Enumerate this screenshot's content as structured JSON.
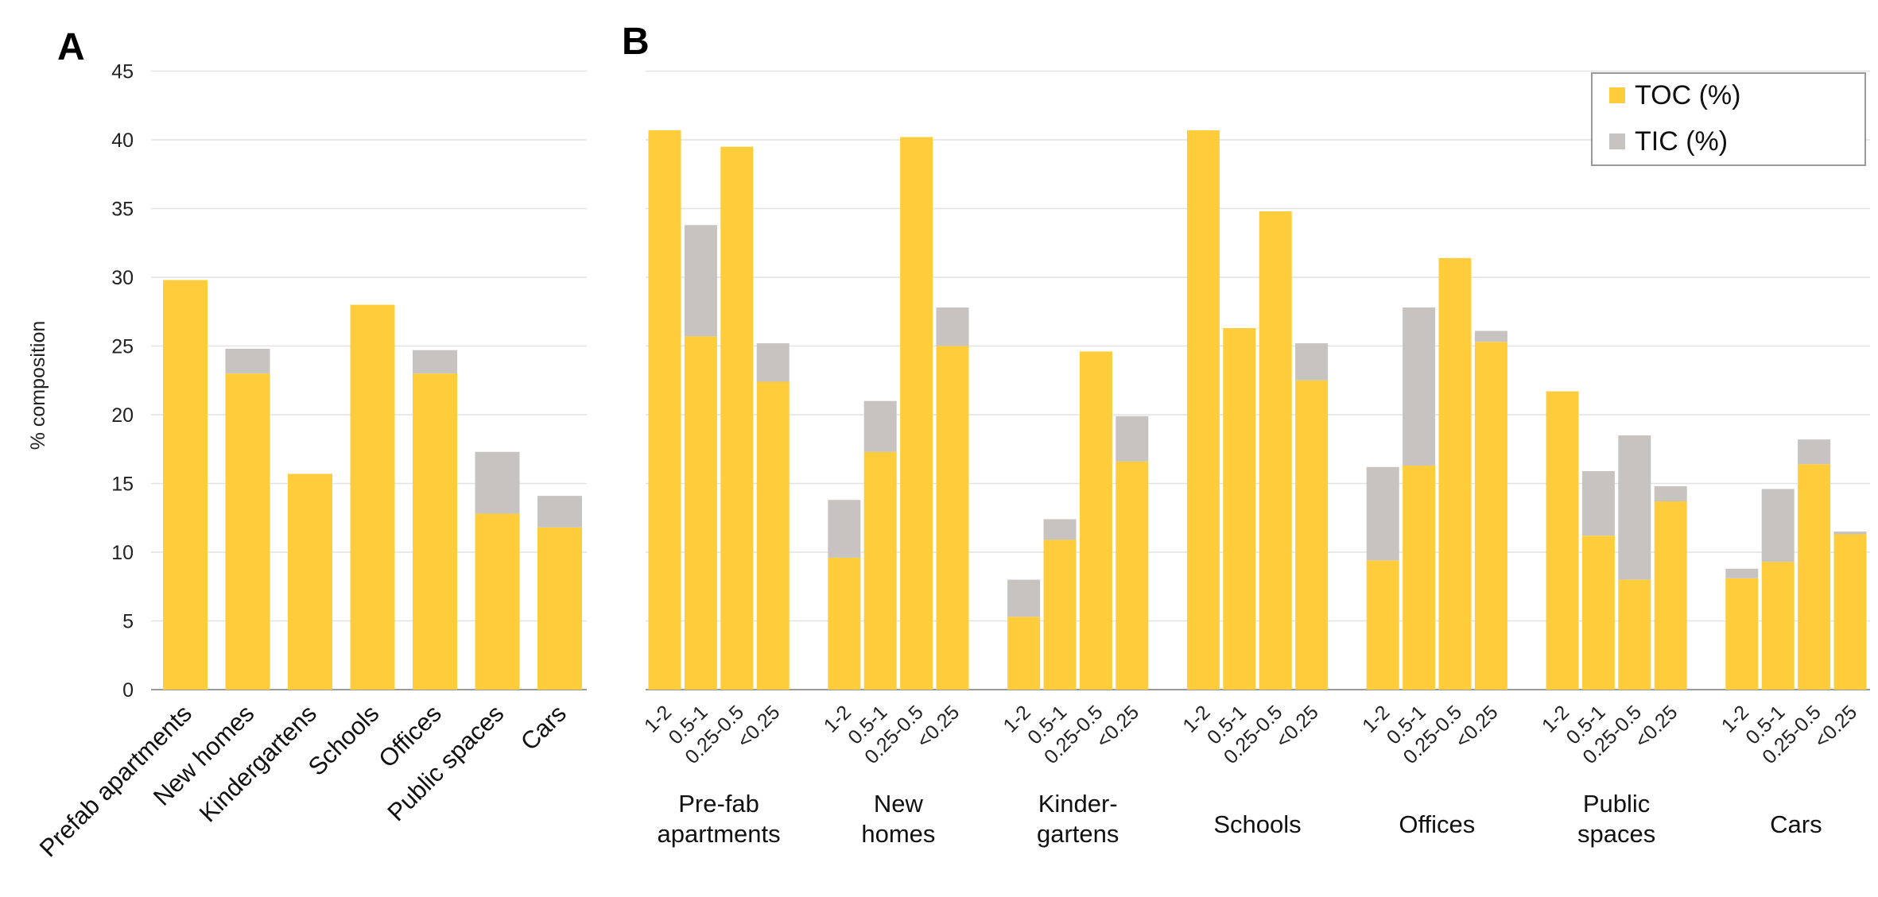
{
  "panels": {
    "a": "A",
    "b": "B"
  },
  "chart_data": [
    {
      "type": "bar",
      "stacked": true,
      "panel_label": "A",
      "title": "",
      "xlabel": "",
      "ylabel": "% composition",
      "ylim": [
        0,
        45
      ],
      "yticks": [
        0,
        5,
        10,
        15,
        20,
        25,
        30,
        35,
        40,
        45
      ],
      "grid": true,
      "categories": [
        "Prefab apartments",
        "New homes",
        "Kindergartens",
        "Schools",
        "Offices",
        "Public spaces",
        "Cars"
      ],
      "series": [
        {
          "name": "TOC (%)",
          "color": "#ffcd3c",
          "values": [
            29.8,
            23.0,
            15.7,
            28.0,
            23.0,
            12.8,
            11.8
          ]
        },
        {
          "name": "TIC (%)",
          "color": "#c7c3c0",
          "values": [
            0.0,
            1.8,
            0.0,
            0.0,
            1.7,
            4.5,
            2.3
          ]
        }
      ]
    },
    {
      "type": "bar",
      "stacked": true,
      "panel_label": "B",
      "title": "",
      "xlabel": "",
      "ylabel": "",
      "ylim": [
        0,
        45
      ],
      "grid": true,
      "legend": "top-right",
      "groups": [
        {
          "label_lines": [
            "Pre-fab",
            "apartments"
          ],
          "sizes": [
            "1-2",
            "0.5-1",
            "0.25-0.5",
            "<0.25"
          ],
          "toc": [
            40.7,
            25.7,
            39.5,
            22.4
          ],
          "tic": [
            0.0,
            8.1,
            0.0,
            2.8
          ]
        },
        {
          "label_lines": [
            "New",
            "homes"
          ],
          "sizes": [
            "1-2",
            "0.5-1",
            "0.25-0.5",
            "<0.25"
          ],
          "toc": [
            9.6,
            17.3,
            40.2,
            25.0
          ],
          "tic": [
            4.2,
            3.7,
            0.0,
            2.8
          ]
        },
        {
          "label_lines": [
            "Kinder-",
            "gartens"
          ],
          "sizes": [
            "1-2",
            "0.5-1",
            "0.25-0.5",
            "<0.25"
          ],
          "toc": [
            5.3,
            10.9,
            24.6,
            16.6
          ],
          "tic": [
            2.7,
            1.5,
            0.0,
            3.3
          ]
        },
        {
          "label_lines": [
            "Schools"
          ],
          "sizes": [
            "1-2",
            "0.5-1",
            "0.25-0.5",
            "<0.25"
          ],
          "toc": [
            40.7,
            26.3,
            34.8,
            22.5
          ],
          "tic": [
            0.0,
            0.0,
            0.0,
            2.7
          ]
        },
        {
          "label_lines": [
            "Offices"
          ],
          "sizes": [
            "1-2",
            "0.5-1",
            "0.25-0.5",
            "<0.25"
          ],
          "toc": [
            9.4,
            16.3,
            31.4,
            25.3
          ],
          "tic": [
            6.8,
            11.5,
            0.0,
            0.8
          ]
        },
        {
          "label_lines": [
            "Public",
            "spaces"
          ],
          "sizes": [
            "1-2",
            "0.5-1",
            "0.25-0.5",
            "<0.25"
          ],
          "toc": [
            21.7,
            11.2,
            8.0,
            13.7
          ],
          "tic": [
            0.0,
            4.7,
            10.5,
            1.1
          ]
        },
        {
          "label_lines": [
            "Cars"
          ],
          "sizes": [
            "1-2",
            "0.5-1",
            "0.25-0.5",
            "<0.25"
          ],
          "toc": [
            8.1,
            9.3,
            16.4,
            11.3
          ],
          "tic": [
            0.7,
            5.3,
            1.8,
            0.2
          ]
        }
      ],
      "series": [
        {
          "name": "TOC (%)",
          "color": "#ffcd3c"
        },
        {
          "name": "TIC (%)",
          "color": "#c7c3c0"
        }
      ]
    }
  ]
}
